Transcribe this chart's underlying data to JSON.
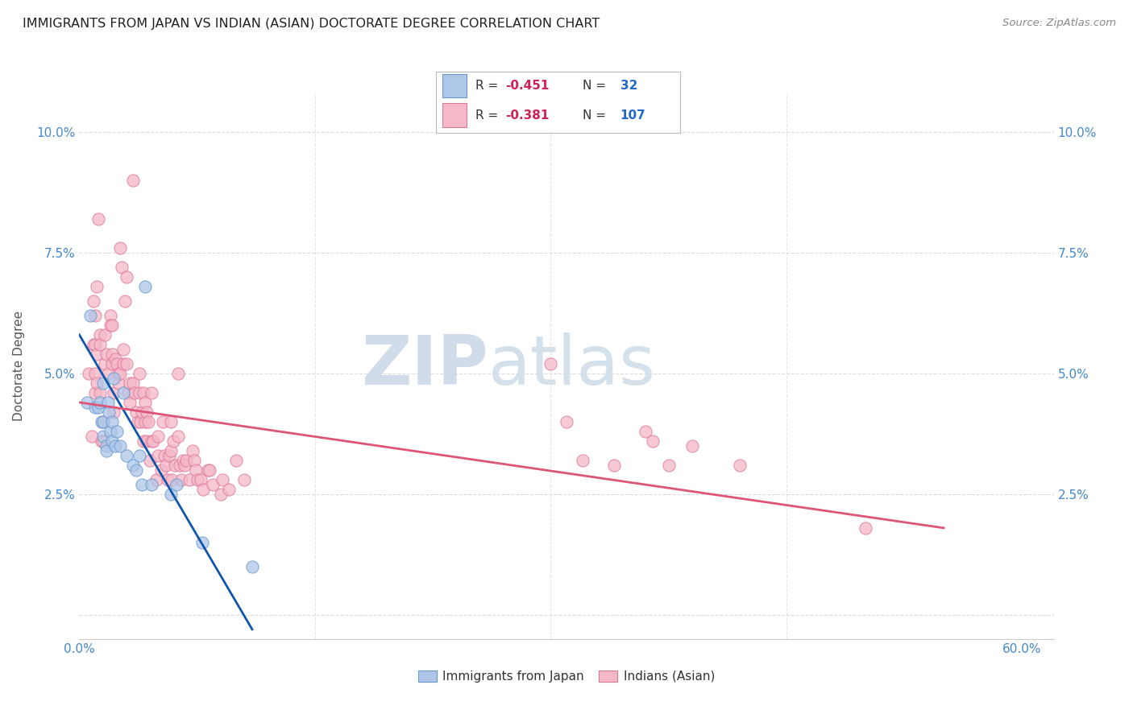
{
  "title": "IMMIGRANTS FROM JAPAN VS INDIAN (ASIAN) DOCTORATE DEGREE CORRELATION CHART",
  "source": "Source: ZipAtlas.com",
  "ylabel": "Doctorate Degree",
  "ytick_labels": [
    "",
    "2.5%",
    "5.0%",
    "7.5%",
    "10.0%"
  ],
  "ytick_values": [
    0.0,
    0.025,
    0.05,
    0.075,
    0.1
  ],
  "xtick_positions": [
    0.0,
    0.15,
    0.3,
    0.45,
    0.6
  ],
  "xtick_labels": [
    "0.0%",
    "",
    "",
    "",
    "60.0%"
  ],
  "xlim": [
    0.0,
    0.62
  ],
  "ylim": [
    -0.005,
    0.108
  ],
  "japan_color": "#aec6e8",
  "japan_edge_color": "#6699cc",
  "japan_line_color": "#1155aa",
  "india_color": "#f5b8c8",
  "india_edge_color": "#dd7799",
  "india_line_color": "#dd5577",
  "watermark_color": "#ccd9e8",
  "background_color": "#ffffff",
  "grid_color": "#cccccc",
  "title_color": "#222222",
  "tick_color": "#4488cc",
  "source_color": "#888888",
  "ylabel_color": "#555555",
  "legend_R_color": "#cc2255",
  "legend_N_color": "#2266cc",
  "legend_box_color": "#dddddd",
  "japan_points": [
    [
      0.005,
      0.044
    ],
    [
      0.007,
      0.062
    ],
    [
      0.01,
      0.043
    ],
    [
      0.012,
      0.043
    ],
    [
      0.013,
      0.044
    ],
    [
      0.014,
      0.04
    ],
    [
      0.015,
      0.04
    ],
    [
      0.015,
      0.037
    ],
    [
      0.015,
      0.048
    ],
    [
      0.017,
      0.035
    ],
    [
      0.017,
      0.034
    ],
    [
      0.018,
      0.044
    ],
    [
      0.019,
      0.042
    ],
    [
      0.02,
      0.038
    ],
    [
      0.021,
      0.04
    ],
    [
      0.021,
      0.036
    ],
    [
      0.022,
      0.049
    ],
    [
      0.023,
      0.035
    ],
    [
      0.024,
      0.038
    ],
    [
      0.026,
      0.035
    ],
    [
      0.028,
      0.046
    ],
    [
      0.03,
      0.033
    ],
    [
      0.034,
      0.031
    ],
    [
      0.036,
      0.03
    ],
    [
      0.038,
      0.033
    ],
    [
      0.04,
      0.027
    ],
    [
      0.042,
      0.068
    ],
    [
      0.046,
      0.027
    ],
    [
      0.058,
      0.025
    ],
    [
      0.062,
      0.027
    ],
    [
      0.078,
      0.015
    ],
    [
      0.11,
      0.01
    ]
  ],
  "india_points": [
    [
      0.006,
      0.05
    ],
    [
      0.008,
      0.037
    ],
    [
      0.009,
      0.065
    ],
    [
      0.009,
      0.056
    ],
    [
      0.01,
      0.056
    ],
    [
      0.01,
      0.05
    ],
    [
      0.01,
      0.046
    ],
    [
      0.01,
      0.062
    ],
    [
      0.011,
      0.068
    ],
    [
      0.011,
      0.054
    ],
    [
      0.011,
      0.048
    ],
    [
      0.012,
      0.082
    ],
    [
      0.013,
      0.058
    ],
    [
      0.013,
      0.056
    ],
    [
      0.013,
      0.046
    ],
    [
      0.014,
      0.036
    ],
    [
      0.015,
      0.036
    ],
    [
      0.015,
      0.04
    ],
    [
      0.016,
      0.058
    ],
    [
      0.016,
      0.052
    ],
    [
      0.017,
      0.054
    ],
    [
      0.018,
      0.05
    ],
    [
      0.02,
      0.062
    ],
    [
      0.02,
      0.06
    ],
    [
      0.021,
      0.06
    ],
    [
      0.021,
      0.054
    ],
    [
      0.021,
      0.052
    ],
    [
      0.022,
      0.046
    ],
    [
      0.022,
      0.042
    ],
    [
      0.023,
      0.053
    ],
    [
      0.024,
      0.052
    ],
    [
      0.025,
      0.05
    ],
    [
      0.025,
      0.048
    ],
    [
      0.026,
      0.076
    ],
    [
      0.026,
      0.05
    ],
    [
      0.027,
      0.072
    ],
    [
      0.028,
      0.052
    ],
    [
      0.028,
      0.055
    ],
    [
      0.029,
      0.065
    ],
    [
      0.03,
      0.07
    ],
    [
      0.03,
      0.052
    ],
    [
      0.031,
      0.046
    ],
    [
      0.032,
      0.048
    ],
    [
      0.032,
      0.044
    ],
    [
      0.034,
      0.09
    ],
    [
      0.034,
      0.048
    ],
    [
      0.035,
      0.046
    ],
    [
      0.036,
      0.042
    ],
    [
      0.037,
      0.04
    ],
    [
      0.038,
      0.046
    ],
    [
      0.038,
      0.05
    ],
    [
      0.039,
      0.04
    ],
    [
      0.04,
      0.042
    ],
    [
      0.041,
      0.046
    ],
    [
      0.041,
      0.036
    ],
    [
      0.042,
      0.044
    ],
    [
      0.042,
      0.04
    ],
    [
      0.043,
      0.036
    ],
    [
      0.043,
      0.042
    ],
    [
      0.044,
      0.04
    ],
    [
      0.045,
      0.032
    ],
    [
      0.046,
      0.046
    ],
    [
      0.046,
      0.036
    ],
    [
      0.047,
      0.036
    ],
    [
      0.049,
      0.028
    ],
    [
      0.05,
      0.033
    ],
    [
      0.05,
      0.037
    ],
    [
      0.052,
      0.03
    ],
    [
      0.053,
      0.04
    ],
    [
      0.054,
      0.033
    ],
    [
      0.055,
      0.031
    ],
    [
      0.056,
      0.028
    ],
    [
      0.057,
      0.033
    ],
    [
      0.058,
      0.04
    ],
    [
      0.058,
      0.034
    ],
    [
      0.059,
      0.028
    ],
    [
      0.06,
      0.036
    ],
    [
      0.061,
      0.031
    ],
    [
      0.063,
      0.05
    ],
    [
      0.063,
      0.037
    ],
    [
      0.064,
      0.031
    ],
    [
      0.065,
      0.028
    ],
    [
      0.066,
      0.032
    ],
    [
      0.067,
      0.031
    ],
    [
      0.068,
      0.032
    ],
    [
      0.07,
      0.028
    ],
    [
      0.072,
      0.034
    ],
    [
      0.073,
      0.032
    ],
    [
      0.074,
      0.03
    ],
    [
      0.075,
      0.028
    ],
    [
      0.077,
      0.028
    ],
    [
      0.079,
      0.026
    ],
    [
      0.082,
      0.03
    ],
    [
      0.083,
      0.03
    ],
    [
      0.085,
      0.027
    ],
    [
      0.09,
      0.025
    ],
    [
      0.091,
      0.028
    ],
    [
      0.095,
      0.026
    ],
    [
      0.1,
      0.032
    ],
    [
      0.105,
      0.028
    ],
    [
      0.3,
      0.052
    ],
    [
      0.31,
      0.04
    ],
    [
      0.32,
      0.032
    ],
    [
      0.34,
      0.031
    ],
    [
      0.36,
      0.038
    ],
    [
      0.365,
      0.036
    ],
    [
      0.375,
      0.031
    ],
    [
      0.39,
      0.035
    ],
    [
      0.42,
      0.031
    ],
    [
      0.5,
      0.018
    ]
  ],
  "japan_line": [
    0.0,
    0.058,
    0.11,
    -0.003
  ],
  "india_line": [
    0.0,
    0.044,
    0.55,
    0.018
  ]
}
